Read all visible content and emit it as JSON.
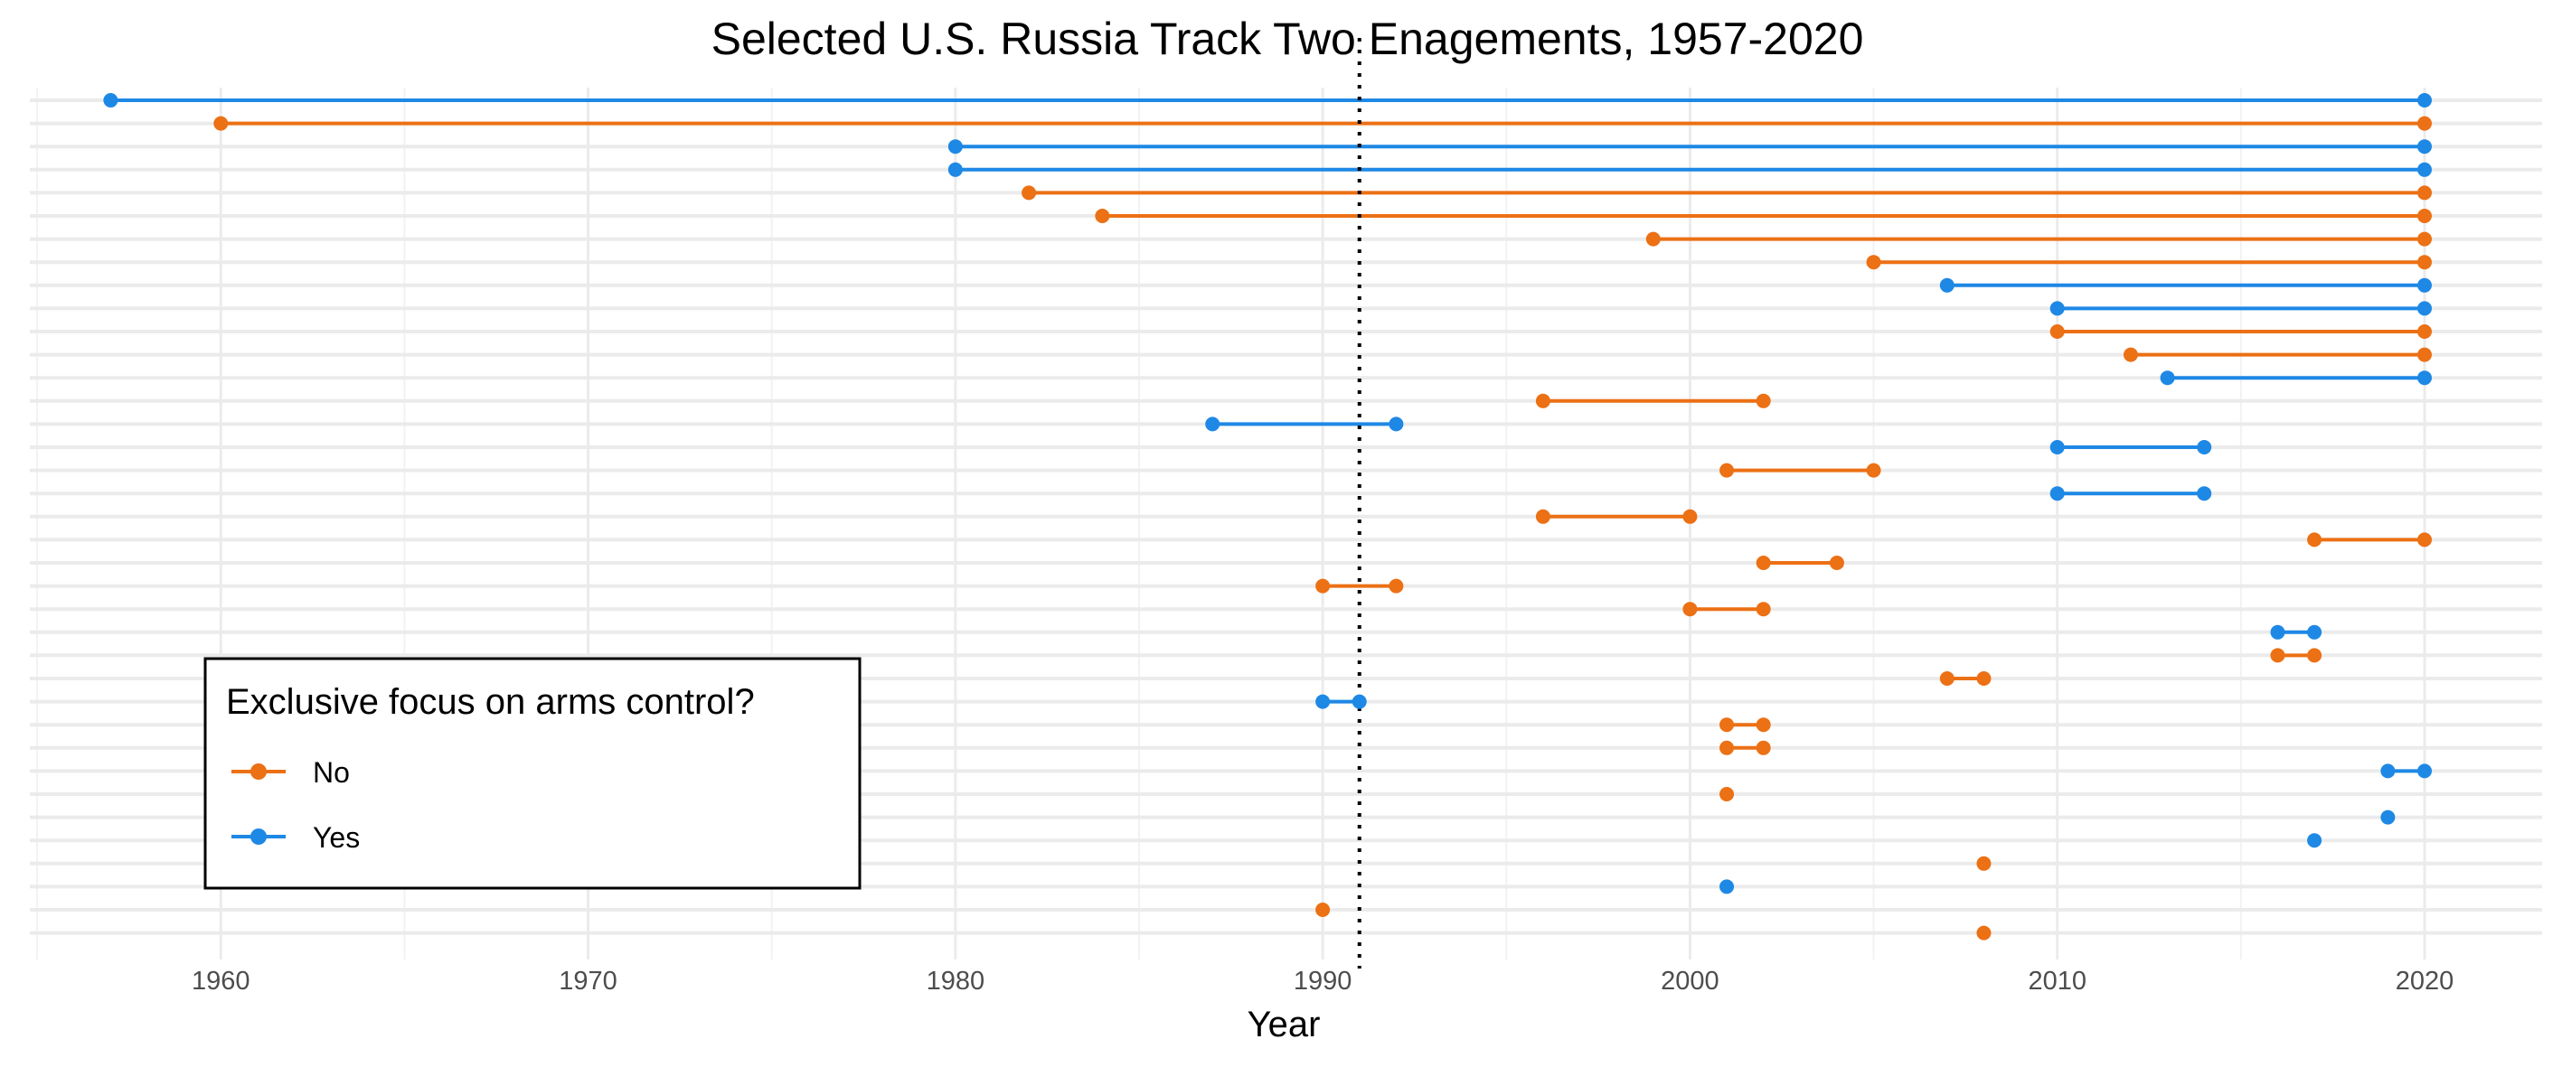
{
  "chart_data": {
    "type": "dumbbell",
    "title": "Selected U.S. Russia Track Two Enagements, 1957-2020",
    "xlabel": "Year",
    "ylabel": "",
    "xlim": [
      1954.8,
      2023.2
    ],
    "x_ticks": [
      1960,
      1970,
      1980,
      1990,
      2000,
      2010,
      2020
    ],
    "grid": true,
    "reference_line": {
      "x": 1991,
      "style": "dotted"
    },
    "colors": {
      "No": "#ec7014",
      "Yes": "#1e88e5"
    },
    "legend": {
      "title": "Exclusive focus on arms control?",
      "position": "bottom-left",
      "entries": [
        {
          "label": "No",
          "color": "#ec7014"
        },
        {
          "label": "Yes",
          "color": "#1e88e5"
        }
      ]
    },
    "series": [
      {
        "start": 1957,
        "end": 2020,
        "arms_control": "Yes"
      },
      {
        "start": 1960,
        "end": 2020,
        "arms_control": "No"
      },
      {
        "start": 1980,
        "end": 2020,
        "arms_control": "Yes"
      },
      {
        "start": 1980,
        "end": 2020,
        "arms_control": "Yes"
      },
      {
        "start": 1982,
        "end": 2020,
        "arms_control": "No"
      },
      {
        "start": 1984,
        "end": 2020,
        "arms_control": "No"
      },
      {
        "start": 1999,
        "end": 2020,
        "arms_control": "No"
      },
      {
        "start": 2005,
        "end": 2020,
        "arms_control": "No"
      },
      {
        "start": 2007,
        "end": 2020,
        "arms_control": "Yes"
      },
      {
        "start": 2010,
        "end": 2020,
        "arms_control": "Yes"
      },
      {
        "start": 2010,
        "end": 2020,
        "arms_control": "No"
      },
      {
        "start": 2012,
        "end": 2020,
        "arms_control": "No"
      },
      {
        "start": 2013,
        "end": 2020,
        "arms_control": "Yes"
      },
      {
        "start": 1996,
        "end": 2002,
        "arms_control": "No"
      },
      {
        "start": 1987,
        "end": 1992,
        "arms_control": "Yes"
      },
      {
        "start": 2010,
        "end": 2014,
        "arms_control": "Yes"
      },
      {
        "start": 2001,
        "end": 2005,
        "arms_control": "No"
      },
      {
        "start": 2010,
        "end": 2014,
        "arms_control": "Yes"
      },
      {
        "start": 1996,
        "end": 2000,
        "arms_control": "No"
      },
      {
        "start": 2017,
        "end": 2020,
        "arms_control": "No"
      },
      {
        "start": 2002,
        "end": 2004,
        "arms_control": "No"
      },
      {
        "start": 1990,
        "end": 1992,
        "arms_control": "No"
      },
      {
        "start": 2000,
        "end": 2002,
        "arms_control": "No"
      },
      {
        "start": 2016,
        "end": 2017,
        "arms_control": "Yes"
      },
      {
        "start": 2016,
        "end": 2017,
        "arms_control": "No"
      },
      {
        "start": 2007,
        "end": 2008,
        "arms_control": "No"
      },
      {
        "start": 1990,
        "end": 1991,
        "arms_control": "Yes"
      },
      {
        "start": 2001,
        "end": 2002,
        "arms_control": "No"
      },
      {
        "start": 2001,
        "end": 2002,
        "arms_control": "No"
      },
      {
        "start": 2019,
        "end": 2020,
        "arms_control": "Yes"
      },
      {
        "start": 2001,
        "end": 2001,
        "arms_control": "No"
      },
      {
        "start": 2019,
        "end": 2019,
        "arms_control": "Yes"
      },
      {
        "start": 2017,
        "end": 2017,
        "arms_control": "Yes"
      },
      {
        "start": 2008,
        "end": 2008,
        "arms_control": "No"
      },
      {
        "start": 2001,
        "end": 2001,
        "arms_control": "Yes"
      },
      {
        "start": 1990,
        "end": 1990,
        "arms_control": "No"
      },
      {
        "start": 2008,
        "end": 2008,
        "arms_control": "No"
      }
    ]
  }
}
